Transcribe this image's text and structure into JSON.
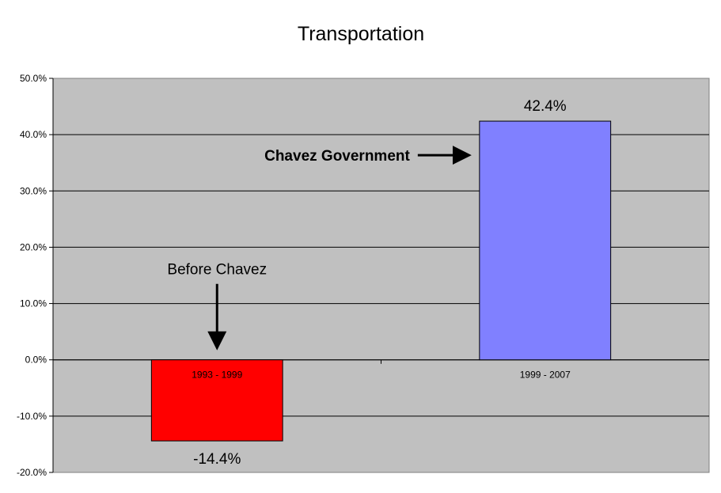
{
  "chart_data": {
    "type": "bar",
    "title": "Transportation",
    "xlabel": "",
    "ylabel": "",
    "categories": [
      "1993 - 1999",
      "1999 - 2007"
    ],
    "values": [
      -14.4,
      42.4
    ],
    "data_labels": [
      "-14.4%",
      "42.4%"
    ],
    "ylim": [
      -20,
      50
    ],
    "yticks": [
      -20,
      -10,
      0,
      10,
      20,
      30,
      40,
      50
    ],
    "ytick_labels": [
      "-20.0%",
      "-10.0%",
      "0.0%",
      "10.0%",
      "20.0%",
      "30.0%",
      "40.0%",
      "50.0%"
    ],
    "grid": true,
    "legend": "none",
    "bar_colors": [
      "#ff0000",
      "#8080ff"
    ],
    "plot_background": "#c0c0c0",
    "annotations": [
      {
        "text": "Before Chavez",
        "arrow": "down",
        "target": "1993 - 1999"
      },
      {
        "text": "Chavez Government",
        "arrow": "right",
        "target": "1999 - 2007"
      }
    ]
  }
}
